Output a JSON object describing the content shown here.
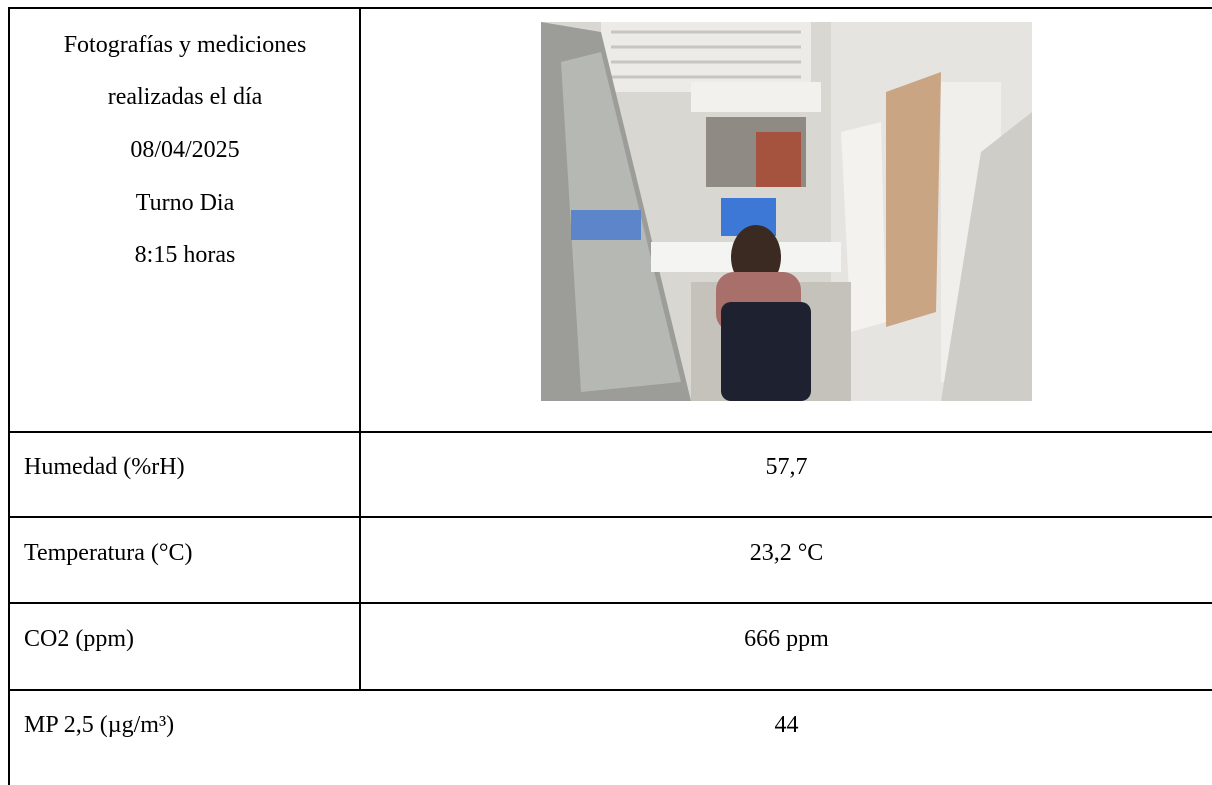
{
  "header": {
    "lines": [
      "Fotografías y mediciones",
      "realizadas el día",
      "08/04/2025",
      "Turno Dia",
      "8:15 horas"
    ]
  },
  "table": {
    "rows": [
      [
        "Humedad (%rH)",
        "57,7"
      ],
      [
        "Temperatura (°C)",
        "23,2 °C"
      ],
      [
        "CO2 (ppm)",
        "666 ppm"
      ],
      [
        "MP 2,5 (µg/m³)",
        "44"
      ]
    ]
  }
}
